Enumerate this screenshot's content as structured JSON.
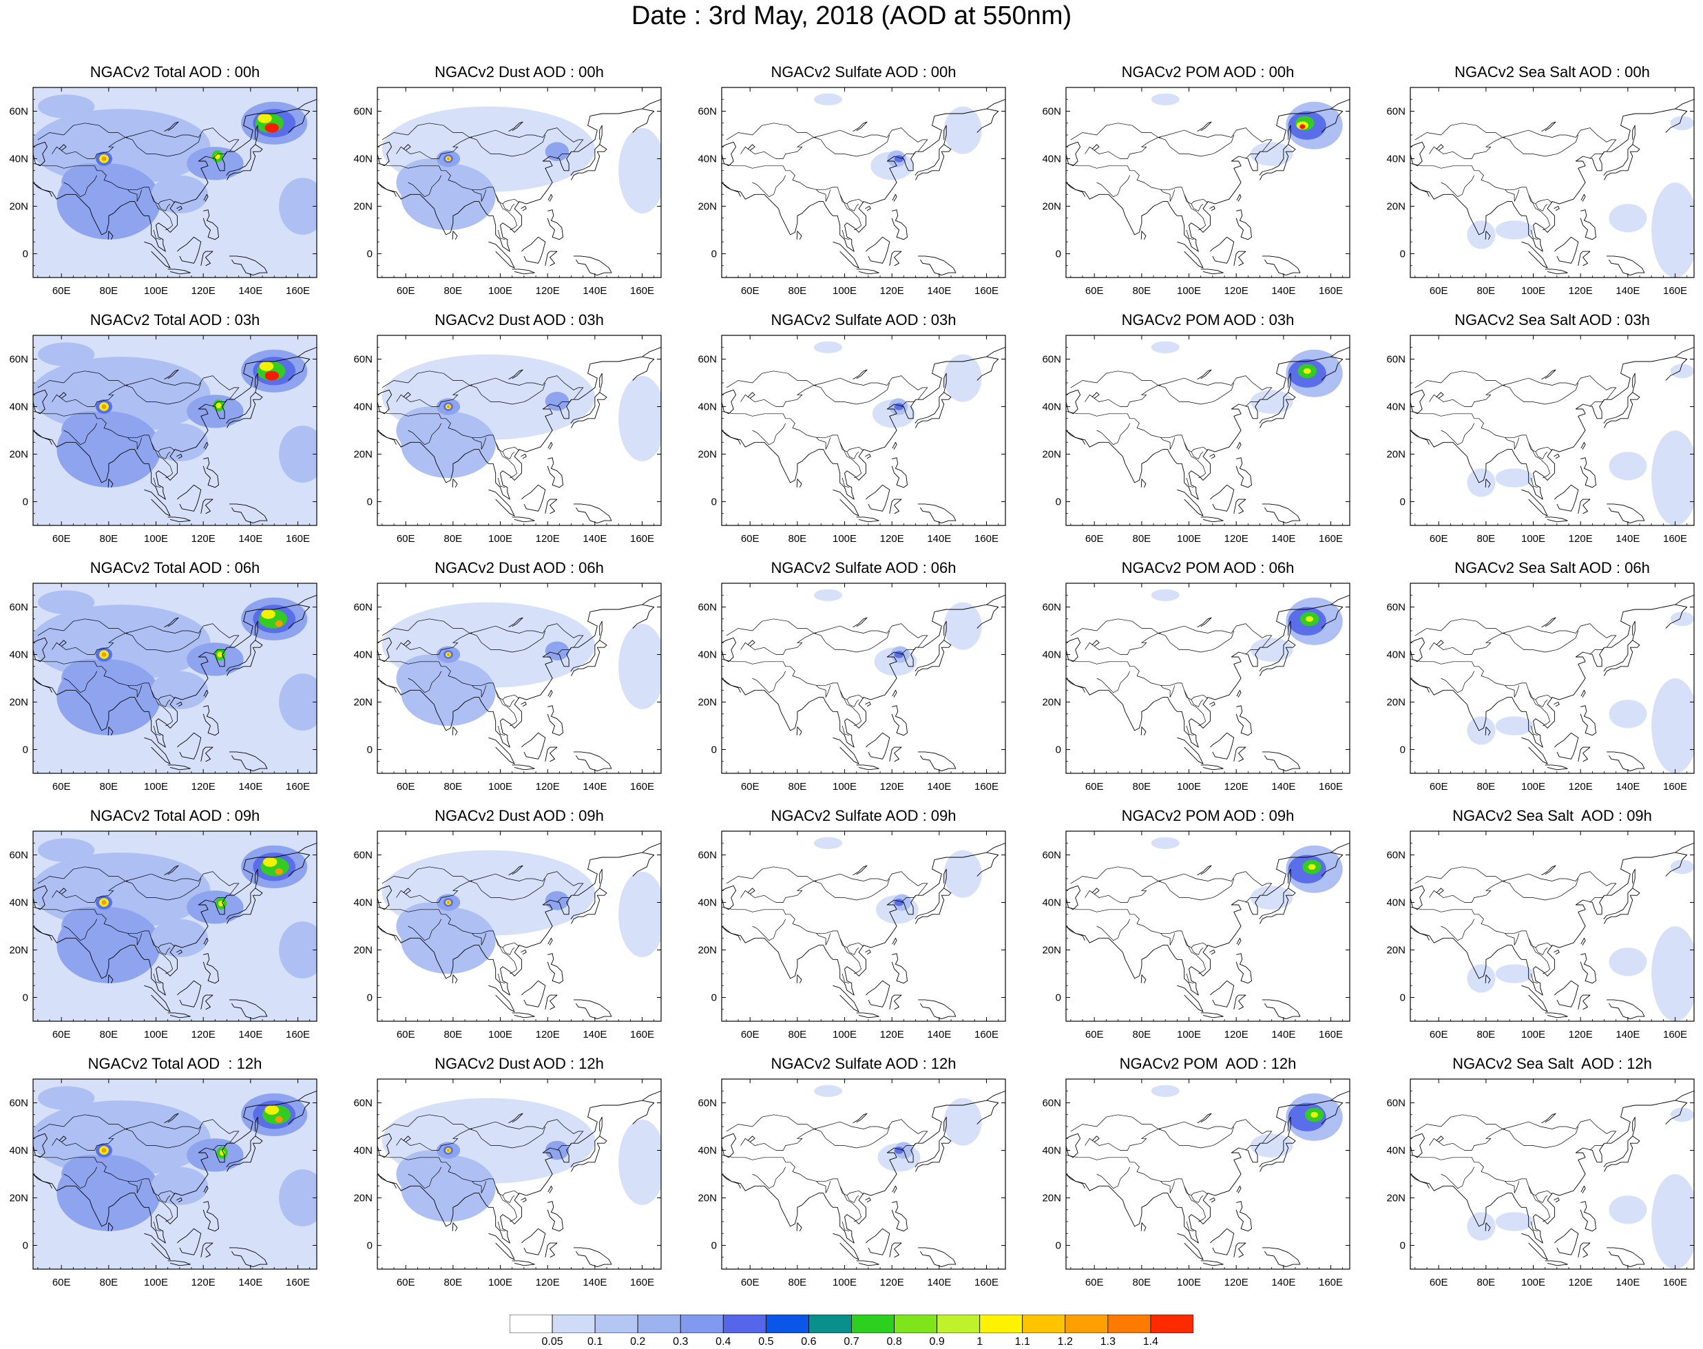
{
  "title": "Date : 3rd May, 2018 (AOD at 550nm)",
  "map": {
    "lon_range": [
      48,
      168
    ],
    "lat_range": [
      -10,
      70
    ],
    "lon_ticks": [
      "60E",
      "80E",
      "100E",
      "120E",
      "140E",
      "160E"
    ],
    "lat_ticks": [
      "60N",
      "40N",
      "20N",
      "0"
    ],
    "lon_tick_values": [
      60,
      80,
      100,
      120,
      140,
      160
    ],
    "lat_tick_values": [
      60,
      40,
      20,
      0
    ]
  },
  "panels": [
    [
      "NGACv2 Total AOD : 00h",
      "NGACv2 Dust AOD : 00h",
      "NGACv2 Sulfate AOD : 00h",
      "NGACv2 POM AOD : 00h",
      "NGACv2 Sea Salt AOD : 00h"
    ],
    [
      "NGACv2 Total AOD : 03h",
      "NGACv2 Dust AOD : 03h",
      "NGACv2 Sulfate AOD : 03h",
      "NGACv2 POM AOD : 03h",
      "NGACv2 Sea Salt AOD : 03h"
    ],
    [
      "NGACv2 Total AOD : 06h",
      "NGACv2 Dust AOD : 06h",
      "NGACv2 Sulfate AOD : 06h",
      "NGACv2 POM AOD : 06h",
      "NGACv2 Sea Salt AOD : 06h"
    ],
    [
      "NGACv2 Total AOD : 09h",
      "NGACv2 Dust AOD : 09h",
      "NGACv2 Sulfate AOD : 09h",
      "NGACv2 POM AOD : 09h",
      "NGACv2 Sea Salt  AOD : 09h"
    ],
    [
      "NGACv2 Total AOD  : 12h",
      "NGACv2 Dust AOD : 12h",
      "NGACv2 Sulfate AOD : 12h",
      "NGACv2 POM  AOD : 12h",
      "NGACv2 Sea Salt  AOD : 12h"
    ]
  ],
  "colorbar": {
    "labels": [
      "0.05",
      "0.1",
      "0.2",
      "0.3",
      "0.4",
      "0.5",
      "0.6",
      "0.7",
      "0.8",
      "0.9",
      "1",
      "1.1",
      "1.2",
      "1.3",
      "1.4"
    ],
    "colors": [
      "#ffffff",
      "#d0dcf7",
      "#b4c6f3",
      "#9db3f0",
      "#8199ee",
      "#5566ea",
      "#0b55e8",
      "#098f8c",
      "#2dd01f",
      "#7ee51c",
      "#bff22a",
      "#fff200",
      "#ffc300",
      "#ffa000",
      "#ff7a00",
      "#ff2a00"
    ]
  },
  "shade_colors": {
    "light": "#d6e0f8",
    "mid": "#aebff3",
    "strong": "#8ea4ef",
    "deep": "#5a6eea",
    "green": "#33cc22",
    "yellow": "#f2f200",
    "orange": "#ff9900",
    "red": "#ff1a00",
    "coast": "#000000"
  }
}
